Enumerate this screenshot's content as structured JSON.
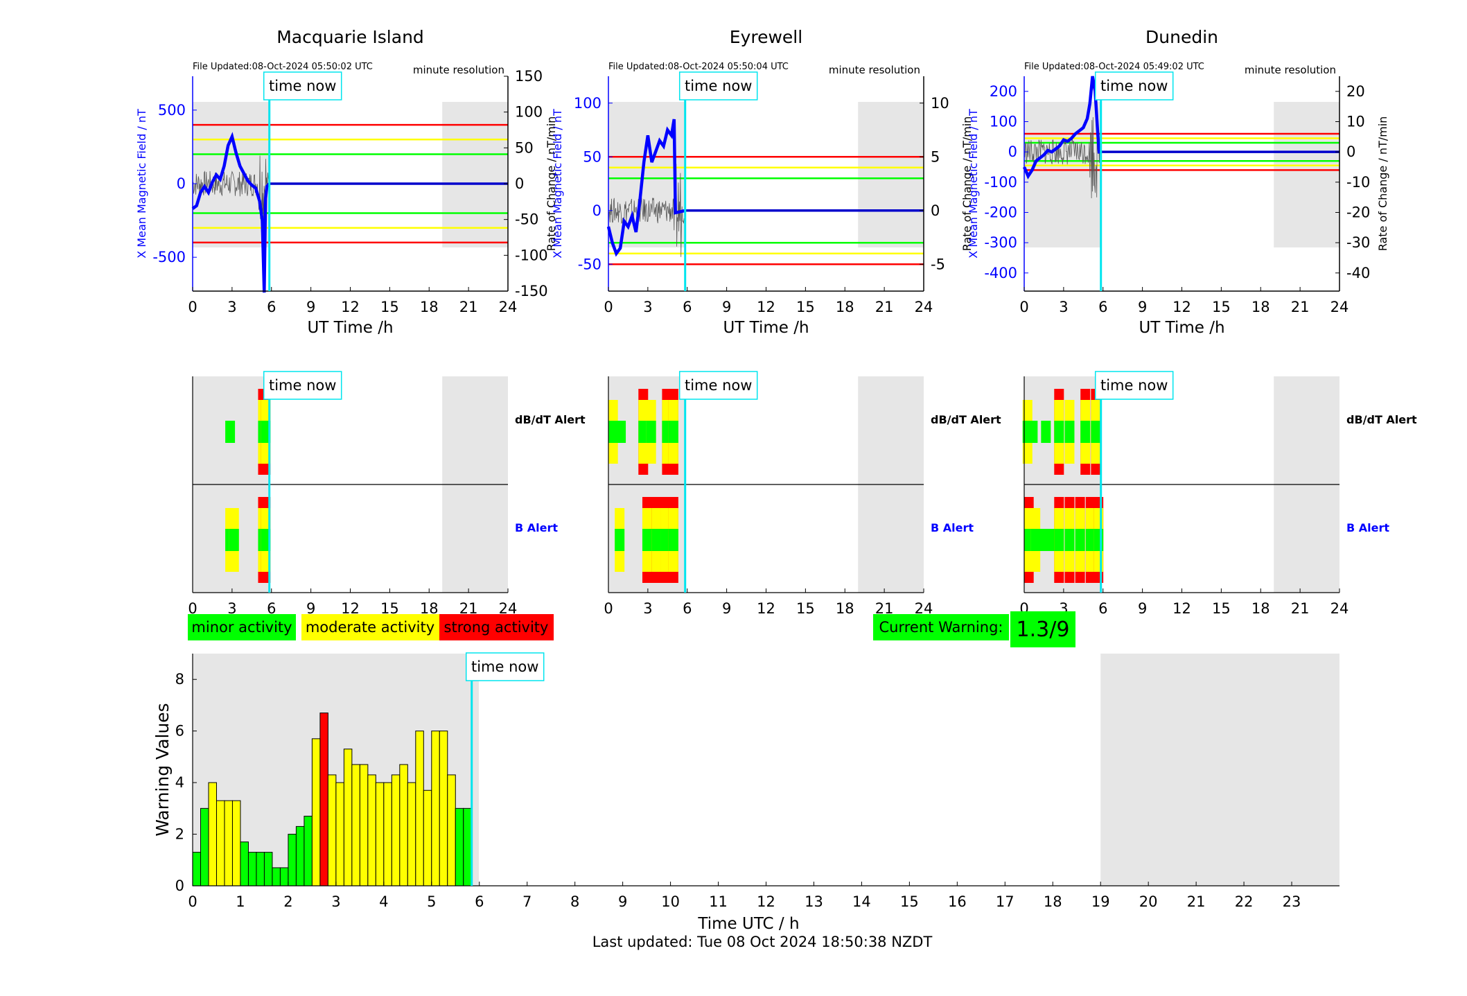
{
  "colors": {
    "field_line": "#0000ff",
    "time_now": "#00e5ee",
    "minor": "#00ff00",
    "moderate": "#ffff00",
    "strong": "#ff0000",
    "shade": "#e6e6e6",
    "roc_line": "#555555",
    "warning_box": "#00ff00"
  },
  "time_now_label": "time now",
  "axis_xlabel": "UT Time /h",
  "x_ticks": [
    "0",
    "3",
    "6",
    "9",
    "12",
    "15",
    "18",
    "21",
    "24"
  ],
  "resolution_label": "minute resolution",
  "time_now_hour": 5.84,
  "night_shading": [
    {
      "from": 0,
      "to": 5.84
    },
    {
      "from": 19,
      "to": 24
    }
  ],
  "stations": [
    {
      "name": "Macquarie Island",
      "file_updated": "File Updated:08-Oct-2024 05:50:02 UTC",
      "ylabel_left": "X Mean Magnetic Field / nT",
      "ylabel_right": "Rate of Change / nT/min",
      "left_range": [
        -730,
        730
      ],
      "left_ticks": [
        "500",
        "0",
        "-500"
      ],
      "right_range": [
        -150,
        150
      ],
      "right_ticks": [
        "150",
        "100",
        "50",
        "0",
        "-50",
        "-100",
        "-150"
      ],
      "thresholds_left": {
        "minor": 200,
        "moderate": 300,
        "strong": 400
      },
      "field_points": [
        [
          0,
          -170
        ],
        [
          0.3,
          -150
        ],
        [
          0.6,
          -60
        ],
        [
          0.9,
          -20
        ],
        [
          1.2,
          -60
        ],
        [
          1.5,
          10
        ],
        [
          1.8,
          60
        ],
        [
          2.1,
          30
        ],
        [
          2.4,
          120
        ],
        [
          2.7,
          260
        ],
        [
          3.0,
          320
        ],
        [
          3.3,
          210
        ],
        [
          3.6,
          120
        ],
        [
          3.9,
          70
        ],
        [
          4.2,
          20
        ],
        [
          4.5,
          -10
        ],
        [
          4.8,
          -30
        ],
        [
          5.1,
          -120
        ],
        [
          5.3,
          -250
        ],
        [
          5.45,
          -740
        ],
        [
          5.55,
          -100
        ],
        [
          5.65,
          -20
        ],
        [
          5.84,
          0
        ]
      ],
      "field_flat_value": 0,
      "dbdt_alert": [
        {
          "h": 2.8,
          "level": "minor"
        },
        {
          "h": 5.3,
          "level": "strong"
        },
        {
          "h": 5.5,
          "level": "strong"
        }
      ],
      "b_alert": [
        {
          "h": 2.8,
          "level": "moderate"
        },
        {
          "h": 3.1,
          "level": "moderate"
        },
        {
          "h": 5.3,
          "level": "strong"
        },
        {
          "h": 5.5,
          "level": "strong"
        }
      ]
    },
    {
      "name": "Eyrewell",
      "file_updated": "File Updated:08-Oct-2024 05:50:04 UTC",
      "ylabel_left": "X Mean Magnetic Field / nT",
      "ylabel_right": "Rate of Change / nT/min",
      "left_range": [
        -75,
        125
      ],
      "left_ticks": [
        "100",
        "50",
        "0",
        "-50"
      ],
      "right_range": [
        -7.5,
        12.5
      ],
      "right_ticks": [
        "10",
        "5",
        "0",
        "-5"
      ],
      "thresholds_left": {
        "minor": 30,
        "moderate": 40,
        "strong": 50
      },
      "field_points": [
        [
          0,
          -15
        ],
        [
          0.3,
          -30
        ],
        [
          0.6,
          -40
        ],
        [
          0.9,
          -35
        ],
        [
          1.2,
          -10
        ],
        [
          1.5,
          -15
        ],
        [
          1.8,
          -5
        ],
        [
          2.1,
          -20
        ],
        [
          2.4,
          10
        ],
        [
          2.7,
          45
        ],
        [
          3.0,
          70
        ],
        [
          3.3,
          45
        ],
        [
          3.6,
          55
        ],
        [
          3.9,
          65
        ],
        [
          4.2,
          60
        ],
        [
          4.5,
          75
        ],
        [
          4.8,
          70
        ],
        [
          5.0,
          85
        ],
        [
          5.1,
          -2
        ],
        [
          5.84,
          0
        ]
      ],
      "field_flat_value": 0,
      "dbdt_alert": [
        {
          "h": 0.3,
          "level": "moderate"
        },
        {
          "h": 0.9,
          "level": "minor"
        },
        {
          "h": 2.6,
          "level": "strong"
        },
        {
          "h": 3.2,
          "level": "moderate"
        },
        {
          "h": 4.4,
          "level": "strong"
        },
        {
          "h": 4.9,
          "level": "strong"
        }
      ],
      "b_alert": [
        {
          "h": 0.8,
          "level": "moderate"
        },
        {
          "h": 2.9,
          "level": "strong"
        },
        {
          "h": 3.6,
          "level": "strong"
        },
        {
          "h": 4.3,
          "level": "strong"
        },
        {
          "h": 4.9,
          "level": "strong"
        }
      ]
    },
    {
      "name": "Dunedin",
      "file_updated": "File Updated:08-Oct-2024 05:49:02 UTC",
      "ylabel_left": "X Mean Magnetic Field / nT",
      "ylabel_right": "Rate of Change / nT/min",
      "left_range": [
        -460,
        250
      ],
      "left_ticks": [
        "200",
        "100",
        "0",
        "-100",
        "-200",
        "-300",
        "-400"
      ],
      "right_range": [
        -46,
        25
      ],
      "right_ticks": [
        "20",
        "10",
        "0",
        "-10",
        "-20",
        "-30",
        "-40"
      ],
      "thresholds_left": {
        "minor": 30,
        "moderate": 45,
        "strong": 60
      },
      "field_points": [
        [
          0,
          -50
        ],
        [
          0.3,
          -80
        ],
        [
          0.6,
          -60
        ],
        [
          0.9,
          -30
        ],
        [
          1.2,
          -20
        ],
        [
          1.5,
          -10
        ],
        [
          1.8,
          5
        ],
        [
          2.1,
          0
        ],
        [
          2.4,
          10
        ],
        [
          2.7,
          20
        ],
        [
          3.0,
          40
        ],
        [
          3.3,
          35
        ],
        [
          3.6,
          45
        ],
        [
          3.9,
          60
        ],
        [
          4.2,
          70
        ],
        [
          4.5,
          80
        ],
        [
          4.8,
          110
        ],
        [
          5.0,
          160
        ],
        [
          5.2,
          250
        ],
        [
          5.4,
          200
        ],
        [
          5.6,
          60
        ],
        [
          5.7,
          0
        ],
        [
          5.84,
          0
        ]
      ],
      "field_flat_value": 0,
      "dbdt_alert": [
        {
          "h": 0.2,
          "level": "moderate"
        },
        {
          "h": 0.6,
          "level": "minor"
        },
        {
          "h": 1.6,
          "level": "minor"
        },
        {
          "h": 2.6,
          "level": "strong"
        },
        {
          "h": 3.4,
          "level": "moderate"
        },
        {
          "h": 4.6,
          "level": "strong"
        },
        {
          "h": 5.4,
          "level": "strong"
        }
      ],
      "b_alert": [
        {
          "h": 0.3,
          "level": "strong"
        },
        {
          "h": 0.8,
          "level": "moderate"
        },
        {
          "h": 1.3,
          "level": "minor"
        },
        {
          "h": 2.0,
          "level": "minor"
        },
        {
          "h": 2.6,
          "level": "strong"
        },
        {
          "h": 3.4,
          "level": "strong"
        },
        {
          "h": 4.2,
          "level": "strong"
        },
        {
          "h": 5.0,
          "level": "strong"
        },
        {
          "h": 5.6,
          "level": "strong"
        }
      ]
    }
  ],
  "alert_labels": {
    "dbdt": "dB/dT Alert",
    "b": "B Alert"
  },
  "legend": [
    {
      "label": "minor activity",
      "level": "minor"
    },
    {
      "label": "moderate activity",
      "level": "moderate"
    },
    {
      "label": "strong activity",
      "level": "strong"
    }
  ],
  "current_warning": {
    "label": "Current Warning:",
    "value": "1.3/9"
  },
  "chart_data": {
    "type": "bar",
    "xlabel": "Time UTC / h",
    "ylabel": "Warning Values",
    "ylim": [
      0,
      9
    ],
    "xlim": [
      0,
      24
    ],
    "y_ticks": [
      "0",
      "2",
      "4",
      "6",
      "8"
    ],
    "x_ticks": [
      "0",
      "1",
      "2",
      "3",
      "4",
      "5",
      "6",
      "7",
      "8",
      "9",
      "10",
      "11",
      "12",
      "13",
      "14",
      "15",
      "16",
      "17",
      "18",
      "19",
      "20",
      "21",
      "22",
      "23"
    ],
    "bar_width_h": 0.1667,
    "x": [
      0,
      0.1667,
      0.3333,
      0.5,
      0.6667,
      0.8333,
      1,
      1.1667,
      1.3333,
      1.5,
      1.6667,
      1.8333,
      2,
      2.1667,
      2.3333,
      2.5,
      2.6667,
      2.8333,
      3,
      3.1667,
      3.3333,
      3.5,
      3.6667,
      3.8333,
      4,
      4.1667,
      4.3333,
      4.5,
      4.6667,
      4.8333,
      5,
      5.1667,
      5.3333,
      5.5,
      5.6667
    ],
    "values": [
      1.3,
      3.0,
      4.0,
      3.3,
      3.3,
      3.3,
      1.7,
      1.3,
      1.3,
      1.3,
      0.7,
      0.7,
      2.0,
      2.3,
      2.7,
      5.7,
      6.7,
      4.3,
      4.0,
      5.3,
      4.7,
      4.7,
      4.3,
      4.0,
      4.0,
      4.3,
      4.7,
      4.0,
      6.0,
      3.7,
      6.0,
      6.0,
      4.3,
      3.0,
      3.0
    ],
    "levels": [
      "minor",
      "minor",
      "moderate",
      "moderate",
      "moderate",
      "moderate",
      "minor",
      "minor",
      "minor",
      "minor",
      "minor",
      "minor",
      "minor",
      "minor",
      "minor",
      "moderate",
      "strong",
      "moderate",
      "moderate",
      "moderate",
      "moderate",
      "moderate",
      "moderate",
      "moderate",
      "moderate",
      "moderate",
      "moderate",
      "moderate",
      "moderate",
      "moderate",
      "moderate",
      "moderate",
      "moderate",
      "minor",
      "minor"
    ]
  },
  "last_updated": "Last updated: Tue 08 Oct 2024 18:50:38 NZDT"
}
